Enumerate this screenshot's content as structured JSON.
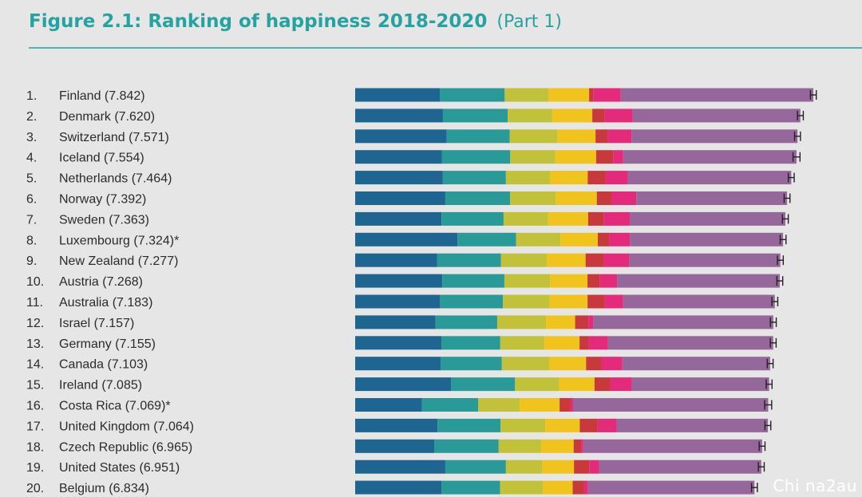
{
  "header": {
    "title": "Figure 2.1: Ranking of happiness 2018-2020",
    "part": "(Part 1)"
  },
  "watermark": "Chi na2au",
  "colors": [
    "#1f6591",
    "#2a9a98",
    "#c2c23a",
    "#f0c41c",
    "#c8393b",
    "#e32a7b",
    "#96679a"
  ],
  "chart_data": {
    "type": "bar",
    "orientation": "horizontal",
    "stacked": true,
    "title": "Figure 2.1: Ranking of happiness 2018-2020",
    "xlim": [
      0,
      8.2
    ],
    "segment_colors": [
      "#1f6591",
      "#2a9a98",
      "#c2c23a",
      "#f0c41c",
      "#c8393b",
      "#e32a7b",
      "#96679a"
    ],
    "rows": [
      {
        "rank": "1.",
        "label": "Finland (7.842)",
        "score": 7.842,
        "segments": [
          1.453,
          1.106,
          0.752,
          0.693,
          0.07,
          0.472,
          3.296
        ],
        "ci": 0.05
      },
      {
        "rank": "2.",
        "label": "Denmark (7.620)",
        "score": 7.62,
        "segments": [
          1.502,
          1.108,
          0.763,
          0.686,
          0.208,
          0.485,
          2.868
        ],
        "ci": 0.05
      },
      {
        "rank": "3.",
        "label": "Switzerland (7.571)",
        "score": 7.571,
        "segments": [
          1.566,
          1.079,
          0.816,
          0.653,
          0.204,
          0.413,
          2.84
        ],
        "ci": 0.05
      },
      {
        "rank": "4.",
        "label": "Iceland (7.554)",
        "score": 7.554,
        "segments": [
          1.482,
          1.172,
          0.772,
          0.698,
          0.293,
          0.17,
          2.967
        ],
        "ci": 0.06
      },
      {
        "rank": "5.",
        "label": "Netherlands (7.464)",
        "score": 7.464,
        "segments": [
          1.501,
          1.079,
          0.753,
          0.647,
          0.302,
          0.384,
          2.798
        ],
        "ci": 0.05
      },
      {
        "rank": "6.",
        "label": "Norway (7.392)",
        "score": 7.392,
        "segments": [
          1.543,
          1.108,
          0.782,
          0.703,
          0.249,
          0.427,
          2.58
        ],
        "ci": 0.05
      },
      {
        "rank": "7.",
        "label": "Sweden (7.363)",
        "score": 7.363,
        "segments": [
          1.478,
          1.062,
          0.763,
          0.685,
          0.27,
          0.442,
          2.663
        ],
        "ci": 0.05
      },
      {
        "rank": "8.",
        "label": "Luxembourg (7.324)*",
        "score": 7.324,
        "segments": [
          1.751,
          1.003,
          0.76,
          0.639,
          0.192,
          0.356,
          2.623
        ],
        "ci": 0.05
      },
      {
        "rank": "9.",
        "label": "New Zealand (7.277)",
        "score": 7.277,
        "segments": [
          1.4,
          1.094,
          0.785,
          0.665,
          0.305,
          0.442,
          2.586
        ],
        "ci": 0.05
      },
      {
        "rank": "10.",
        "label": "Austria (7.268)",
        "score": 7.268,
        "segments": [
          1.492,
          1.062,
          0.782,
          0.64,
          0.215,
          0.291,
          2.786
        ],
        "ci": 0.05
      },
      {
        "rank": "11.",
        "label": "Australia (7.183)",
        "score": 7.183,
        "segments": [
          1.453,
          1.076,
          0.801,
          0.647,
          0.291,
          0.317,
          2.598
        ],
        "ci": 0.05
      },
      {
        "rank": "12.",
        "label": "Israel (7.157)",
        "score": 7.157,
        "segments": [
          1.376,
          1.055,
          0.836,
          0.498,
          0.226,
          0.085,
          3.081
        ],
        "ci": 0.05
      },
      {
        "rank": "13.",
        "label": "Germany (7.155)",
        "score": 7.155,
        "segments": [
          1.48,
          1.003,
          0.757,
          0.6,
          0.157,
          0.331,
          2.827
        ],
        "ci": 0.05
      },
      {
        "rank": "14.",
        "label": "Canada (7.103)",
        "score": 7.103,
        "segments": [
          1.463,
          1.048,
          0.809,
          0.632,
          0.262,
          0.36,
          2.529
        ],
        "ci": 0.05
      },
      {
        "rank": "15.",
        "label": "Ireland (7.085)",
        "score": 7.085,
        "segments": [
          1.644,
          1.092,
          0.754,
          0.607,
          0.268,
          0.373,
          2.347
        ],
        "ci": 0.05
      },
      {
        "rank": "16.",
        "label": "Costa Rica (7.069)*",
        "score": 7.069,
        "segments": [
          1.142,
          0.962,
          0.712,
          0.683,
          0.183,
          0.047,
          3.34
        ],
        "ci": 0.06
      },
      {
        "rank": "17.",
        "label": "United Kingdom (7.064)",
        "score": 7.064,
        "segments": [
          1.409,
          1.08,
          0.764,
          0.591,
          0.307,
          0.328,
          2.585
        ],
        "ci": 0.05
      },
      {
        "rank": "18.",
        "label": "Czech Republic (6.965)",
        "score": 6.965,
        "segments": [
          1.353,
          1.103,
          0.726,
          0.558,
          0.127,
          0.038,
          3.06
        ],
        "ci": 0.05
      },
      {
        "rank": "19.",
        "label": "United States (6.951)",
        "score": 6.951,
        "segments": [
          1.543,
          1.037,
          0.622,
          0.543,
          0.26,
          0.17,
          2.776
        ],
        "ci": 0.05
      },
      {
        "rank": "20.",
        "label": "Belgium (6.834)",
        "score": 6.834,
        "segments": [
          1.476,
          1.003,
          0.736,
          0.508,
          0.197,
          0.066,
          2.848
        ],
        "ci": 0.05
      }
    ]
  }
}
